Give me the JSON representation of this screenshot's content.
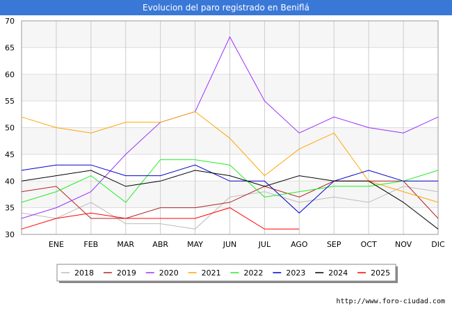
{
  "header": {
    "title": "Evolucion del paro registrado en Beniflá"
  },
  "footer": {
    "url": "http://www.foro-ciudad.com"
  },
  "chart_data": {
    "type": "line",
    "title": "Evolucion del paro registrado en Beniflá",
    "xlabel": "",
    "ylabel": "",
    "categories": [
      "",
      "ENE",
      "FEB",
      "MAR",
      "ABR",
      "MAY",
      "JUN",
      "JUL",
      "AGO",
      "SEP",
      "OCT",
      "NOV",
      "DIC"
    ],
    "ylim": [
      30,
      70
    ],
    "yticks": [
      30,
      35,
      40,
      45,
      50,
      55,
      60,
      65,
      70
    ],
    "grid": true,
    "legend_position": "bottom",
    "series": [
      {
        "name": "2018",
        "color": "#bbbbbb",
        "values": [
          34,
          33,
          36,
          32,
          32,
          31,
          37,
          38,
          36,
          37,
          36,
          39,
          38
        ]
      },
      {
        "name": "2019",
        "color": "#b22222",
        "values": [
          38,
          39,
          33,
          33,
          35,
          35,
          36,
          39,
          37,
          40,
          40,
          40,
          33
        ]
      },
      {
        "name": "2020",
        "color": "#9b30ff",
        "values": [
          33,
          35,
          38,
          45,
          51,
          53,
          67,
          55,
          49,
          52,
          50,
          49,
          52
        ]
      },
      {
        "name": "2021",
        "color": "#ffa500",
        "values": [
          52,
          50,
          49,
          51,
          51,
          53,
          48,
          41,
          46,
          49,
          40,
          38,
          36
        ]
      },
      {
        "name": "2022",
        "color": "#22ee22",
        "values": [
          36,
          38,
          41,
          36,
          44,
          44,
          43,
          37,
          38,
          39,
          39,
          40,
          42
        ]
      },
      {
        "name": "2023",
        "color": "#0000cc",
        "values": [
          42,
          43,
          43,
          41,
          41,
          43,
          40,
          40,
          34,
          40,
          42,
          40,
          40
        ]
      },
      {
        "name": "2024",
        "color": "#000000",
        "values": [
          40,
          41,
          42,
          39,
          40,
          42,
          41,
          39,
          41,
          40,
          40,
          36,
          31
        ]
      },
      {
        "name": "2025",
        "color": "#ff0000",
        "values": [
          31,
          33,
          34,
          33,
          33,
          33,
          35,
          31,
          31,
          null,
          null,
          null,
          null
        ]
      }
    ]
  }
}
